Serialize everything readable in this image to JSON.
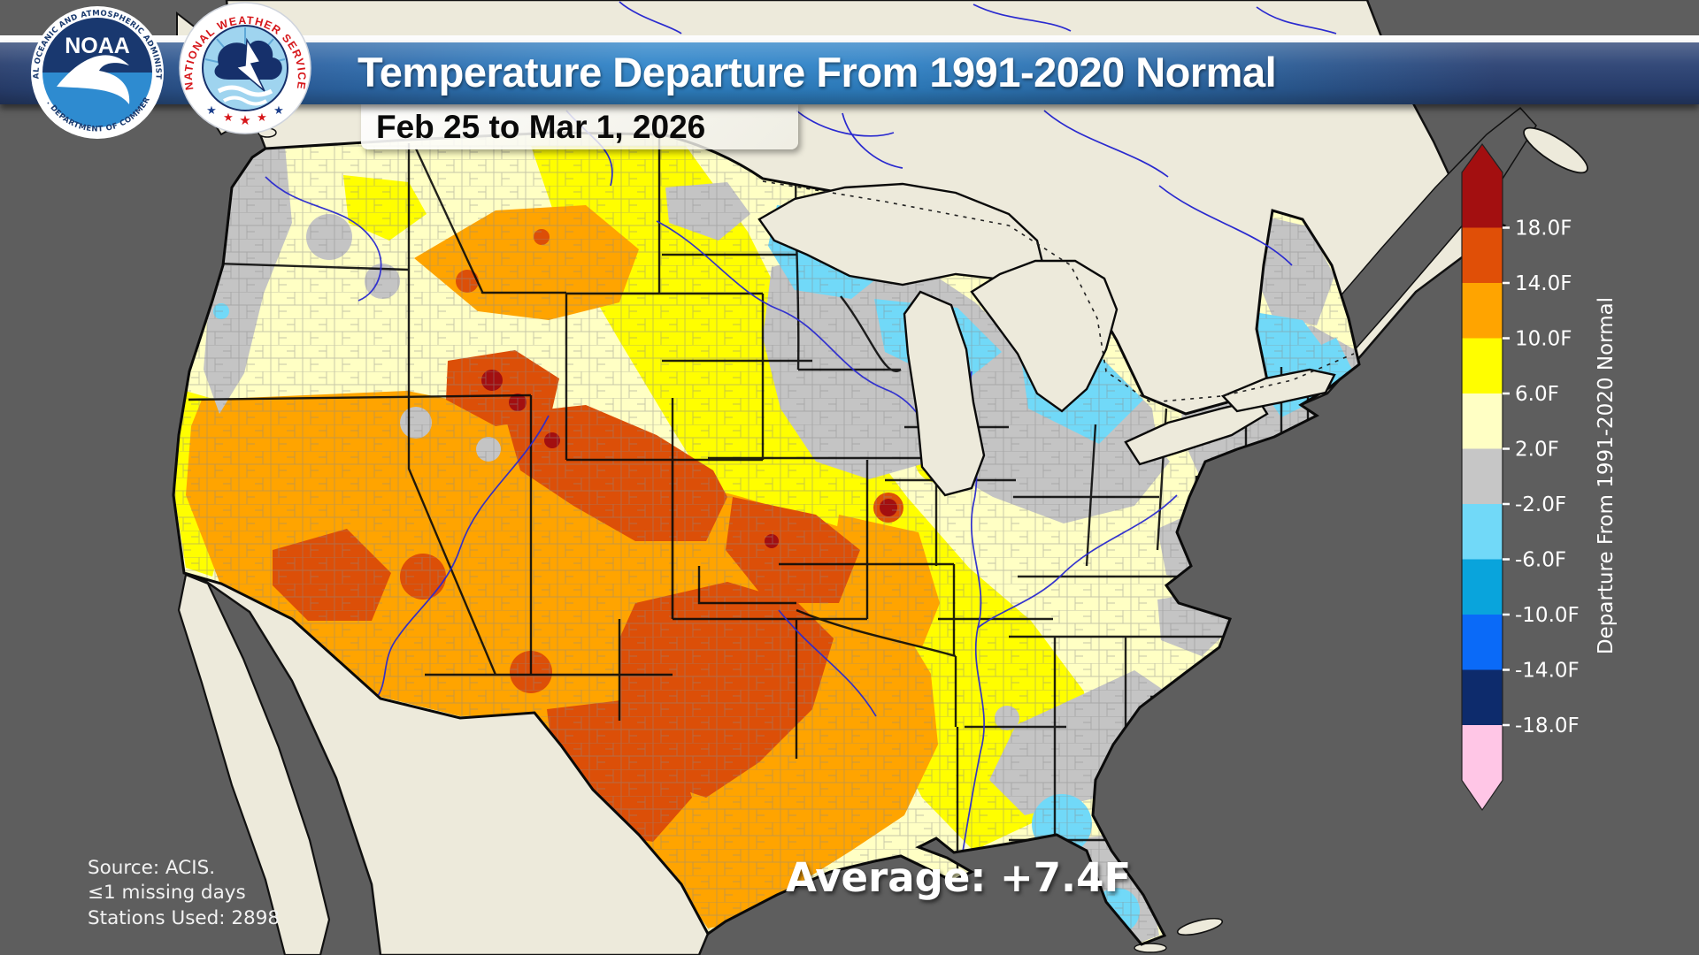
{
  "header": {
    "title": "Temperature Departure From 1991-2020 Normal",
    "date_range": "Feb 25 to Mar 1, 2026"
  },
  "logos": {
    "noaa": {
      "name": "NOAA",
      "ring_text_top": "NATIONAL OCEANIC AND ATMOSPHERIC ADMINISTRATION",
      "ring_text_bottom": "U.S. DEPARTMENT OF COMMERCE"
    },
    "nws": {
      "ring_text": "NATIONAL WEATHER SERVICE"
    }
  },
  "legend": {
    "axis_label": "Departure From 1991-2020 Normal",
    "ticks": [
      "18.0F",
      "14.0F",
      "10.0F",
      "6.0F",
      "2.0F",
      "-2.0F",
      "-6.0F",
      "-10.0F",
      "-14.0F",
      "-18.0F"
    ],
    "segments": [
      {
        "label": "> 18.0F",
        "color": "#A30F10"
      },
      {
        "label": "14.0F to 18.0F",
        "color": "#E04F07"
      },
      {
        "label": "10.0F to 14.0F",
        "color": "#FFA400"
      },
      {
        "label": "6.0F to 10.0F",
        "color": "#FFFE00"
      },
      {
        "label": "2.0F to 6.0F",
        "color": "#FFFFC4"
      },
      {
        "label": "-2.0F to 2.0F",
        "color": "#C6C6C6"
      },
      {
        "label": "-6.0F to -2.0F",
        "color": "#71D9F8"
      },
      {
        "label": "-10.0F to -6.0F",
        "color": "#09A4DC"
      },
      {
        "label": "-14.0F to -10.0F",
        "color": "#0A6AF8"
      },
      {
        "label": "-18.0F to -14.0F",
        "color": "#0D2B6C"
      },
      {
        "label": "< -18.0F",
        "color": "#FFC6E6"
      }
    ]
  },
  "map": {
    "average": "Average: +7.4F",
    "source_lines": [
      "Source: ACIS.",
      "≤1 missing days",
      "Stations Used: 2898"
    ],
    "palette": {
      "ocean": "#5E5E5E",
      "land": "#EDEADB",
      "county_line": "#8A8A8A",
      "state_line": "#0A0A0A",
      "river": "#2A2ACF",
      "near_normal_gray": "#C4C4C4",
      "warm_pale_yellow": "#FFFFC4",
      "warm_yellow": "#FFFE00",
      "warm_orange": "#FFA400",
      "warm_dark_orange": "#DC4F08",
      "warm_dark_red": "#A30F10",
      "cool_light_blue": "#71D9F8",
      "cool_mid_blue": "#1B9FD8"
    }
  }
}
